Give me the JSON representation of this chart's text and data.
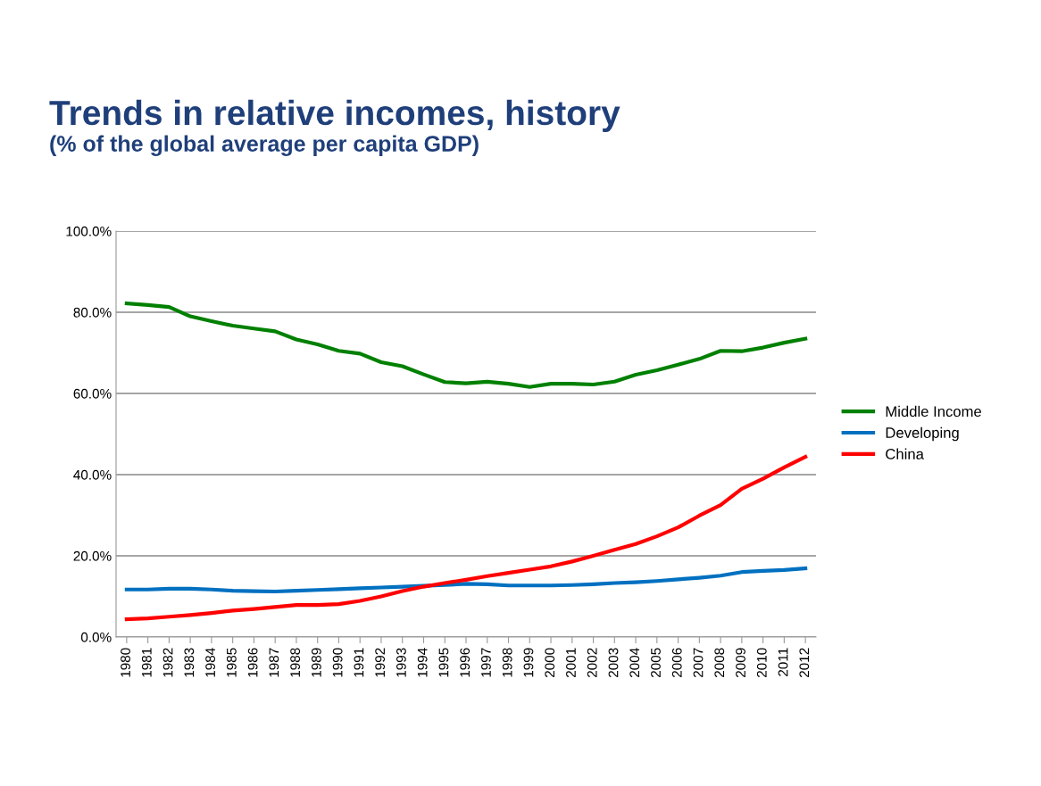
{
  "chart_data": {
    "type": "line",
    "title": "Trends in relative incomes, history",
    "subtitle": "(% of the global average per capita GDP)",
    "categories": [
      "1980",
      "1981",
      "1982",
      "1983",
      "1984",
      "1985",
      "1986",
      "1987",
      "1988",
      "1989",
      "1990",
      "1991",
      "1992",
      "1993",
      "1994",
      "1995",
      "1996",
      "1997",
      "1998",
      "1999",
      "2000",
      "2001",
      "2002",
      "2003",
      "2004",
      "2005",
      "2006",
      "2007",
      "2008",
      "2009",
      "2010",
      "2011",
      "2012"
    ],
    "series": [
      {
        "name": "Middle Income",
        "color": "#008000",
        "values": [
          82.2,
          81.8,
          81.3,
          79.0,
          77.8,
          76.7,
          76.0,
          75.3,
          73.3,
          72.1,
          70.5,
          69.8,
          67.7,
          66.7,
          64.7,
          62.8,
          62.5,
          62.9,
          62.4,
          61.6,
          62.4,
          62.4,
          62.2,
          62.9,
          64.6,
          65.7,
          67.1,
          68.5,
          70.5,
          70.4,
          71.3,
          72.5,
          73.5
        ]
      },
      {
        "name": "Developing",
        "color": "#0070c0",
        "values": [
          11.7,
          11.7,
          11.9,
          11.9,
          11.7,
          11.4,
          11.3,
          11.2,
          11.4,
          11.6,
          11.8,
          12.0,
          12.2,
          12.4,
          12.6,
          12.8,
          13.1,
          13.0,
          12.7,
          12.7,
          12.7,
          12.8,
          13.0,
          13.3,
          13.5,
          13.8,
          14.2,
          14.6,
          15.1,
          16.0,
          16.3,
          16.5,
          16.9
        ]
      },
      {
        "name": "China",
        "color": "#ff0000",
        "values": [
          4.4,
          4.6,
          5.0,
          5.4,
          5.9,
          6.5,
          6.9,
          7.4,
          7.9,
          7.9,
          8.1,
          8.9,
          10.0,
          11.3,
          12.4,
          13.3,
          14.1,
          15.0,
          15.8,
          16.6,
          17.4,
          18.6,
          20.0,
          21.5,
          22.9,
          24.8,
          27.0,
          29.9,
          32.5,
          36.5,
          39.0,
          41.8,
          44.4
        ]
      }
    ],
    "ylim": [
      0,
      100
    ],
    "yticks": [
      {
        "value": 0,
        "label": "0.0%"
      },
      {
        "value": 20,
        "label": "20.0%"
      },
      {
        "value": 40,
        "label": "40.0%"
      },
      {
        "value": 60,
        "label": "60.0%"
      },
      {
        "value": 80,
        "label": "80.0%"
      },
      {
        "value": 100,
        "label": "100.0%"
      }
    ],
    "grid": "y",
    "legend": "right",
    "marker": "none",
    "line_style": "solid"
  }
}
